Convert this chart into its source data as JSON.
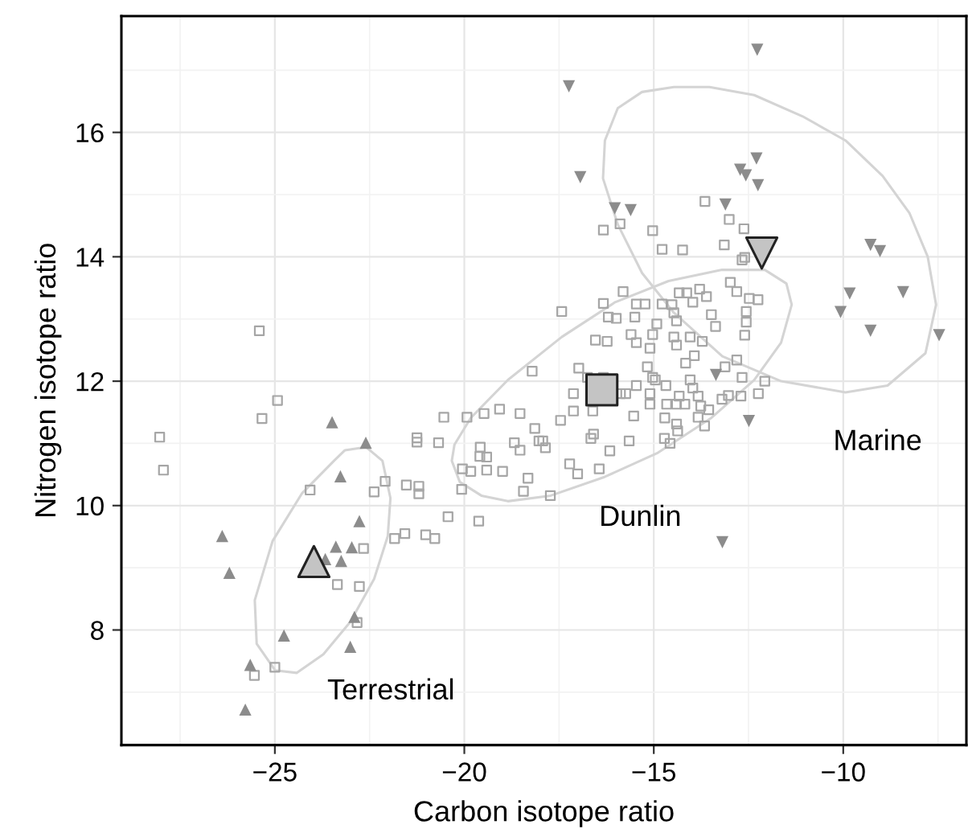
{
  "chart_data": {
    "type": "scatter",
    "xlabel": "Carbon isotope ratio",
    "ylabel": "Nitrogen isotope ratio",
    "xlim": [
      -29.05,
      -6.75
    ],
    "ylim": [
      6.15,
      17.87
    ],
    "xticks": [
      -25,
      -20,
      -15,
      -10
    ],
    "yticks": [
      8,
      10,
      12,
      14,
      16
    ],
    "grid": true,
    "legend": false,
    "series": [
      {
        "color": "#a6a6a6",
        "marker": "square",
        "x": [
          -13.65,
          -13.01,
          -12.62,
          -16.33,
          -15.89,
          -15.03,
          -14.78,
          -14.24,
          -13.14,
          -12.67,
          -12.6,
          -15.81,
          -17.43,
          -16.33,
          -16.2,
          -15.99,
          -15.5,
          -15.46,
          -15.23,
          -14.78,
          -14.52,
          -14.33,
          -14.13,
          -13.97,
          -13.79,
          -13.61,
          -14.47,
          -14.4,
          -13.48,
          -13.37,
          -12.98,
          -12.81,
          -12.48,
          -12.25,
          -12.56,
          -12.56,
          -12.6,
          -14.92,
          -15.03,
          -15.1,
          -14.47,
          -14.4,
          -14.04,
          -13.72,
          -15.6,
          -15.46,
          -16.54,
          -16.23,
          -16.98,
          -16.75,
          -16.33,
          -15.88,
          -15.74,
          -15.46,
          -15.17,
          -15.03,
          -14.96,
          -14.68,
          -15.1,
          -15.1,
          -14.33,
          -14.16,
          -13.93,
          -14.04,
          -13.97,
          -13.83,
          -13.76,
          -13.55,
          -14.18,
          -13.2,
          -13.03,
          -12.7,
          -12.24,
          -12.07,
          -12.67,
          -13.12,
          -12.81,
          -14.66,
          -14.4,
          -15.53,
          -17.12,
          -17.12,
          -16.61,
          -17.46,
          -18.21,
          -19.07,
          -19.48,
          -18.53,
          -19.93,
          -20.54,
          -21.25,
          -21.25,
          -20.68,
          -19.58,
          -19.41,
          -19.59,
          -18.68,
          -18.53,
          -18.14,
          -18.03,
          -17.93,
          -17.86,
          -16.66,
          -16.59,
          -16.16,
          -15.65,
          -14.71,
          -14.4,
          -14.37,
          -14.57,
          -14.72,
          -13.66,
          -13.83,
          -20.05,
          -19.83,
          -19.41,
          -18.99,
          -18.32,
          -17.22,
          -17.01,
          -16.44,
          -20.07,
          -18.44,
          -17.73,
          -21.53,
          -21.2,
          -21.2,
          -20.43,
          -19.62,
          -21.57,
          -21.02,
          -20.78,
          -25.41,
          -24.93,
          -25.34,
          -28.04,
          -27.94,
          -24.07,
          -22.38,
          -22.09,
          -21.84,
          -22.66,
          -23.35,
          -22.77,
          -22.83,
          -25.0,
          -25.54
        ],
        "values": [
          14.89,
          14.6,
          14.45,
          14.43,
          14.53,
          14.42,
          14.12,
          14.11,
          14.19,
          13.95,
          13.99,
          13.44,
          13.12,
          13.25,
          13.03,
          13.01,
          13.03,
          13.24,
          13.24,
          13.24,
          13.23,
          13.42,
          13.42,
          13.27,
          13.48,
          13.36,
          13.1,
          12.97,
          13.07,
          12.88,
          13.59,
          13.44,
          13.33,
          13.31,
          13.12,
          12.95,
          12.74,
          12.92,
          12.75,
          12.53,
          12.71,
          12.58,
          12.71,
          12.64,
          12.75,
          12.62,
          12.66,
          12.64,
          12.21,
          12.06,
          12.06,
          11.8,
          11.8,
          11.93,
          12.23,
          12.06,
          12.02,
          11.93,
          11.8,
          11.63,
          11.76,
          12.29,
          12.41,
          12.02,
          11.89,
          11.76,
          11.6,
          11.54,
          11.63,
          11.71,
          11.77,
          11.76,
          11.8,
          12.0,
          12.06,
          12.23,
          12.34,
          11.63,
          11.63,
          11.44,
          11.8,
          11.52,
          11.52,
          11.37,
          12.16,
          11.55,
          11.48,
          11.48,
          11.42,
          11.42,
          11.09,
          11.02,
          11.01,
          10.94,
          10.78,
          10.79,
          11.01,
          10.89,
          11.24,
          11.04,
          11.04,
          10.93,
          11.08,
          11.15,
          10.88,
          11.04,
          11.41,
          11.31,
          11.2,
          11.0,
          11.08,
          11.28,
          11.42,
          10.59,
          10.55,
          10.57,
          10.55,
          10.44,
          10.67,
          10.51,
          10.59,
          10.26,
          10.23,
          10.16,
          10.33,
          10.31,
          10.19,
          9.82,
          9.75,
          9.55,
          9.53,
          9.47,
          12.81,
          11.69,
          11.4,
          11.1,
          10.57,
          10.25,
          10.22,
          10.39,
          9.47,
          9.31,
          8.73,
          8.7,
          8.12,
          7.4,
          7.27
        ]
      },
      {
        "color": "#8c8c8c",
        "marker": "triangle",
        "x": [
          -23.49,
          -22.6,
          -23.27,
          -22.77,
          -26.39,
          -23.39,
          -22.97,
          -23.67,
          -23.25,
          -26.2,
          -22.9,
          -24.76,
          -23.01,
          -25.65,
          -25.78
        ],
        "values": [
          11.34,
          11.01,
          10.47,
          9.75,
          9.51,
          9.34,
          9.33,
          9.14,
          9.11,
          8.92,
          8.21,
          7.91,
          7.73,
          7.44,
          6.72
        ]
      },
      {
        "color": "#8c8c8c",
        "marker": "triangle_down",
        "x": [
          -17.24,
          -12.27,
          -16.94,
          -12.29,
          -12.72,
          -12.57,
          -12.25,
          -16.03,
          -15.61,
          -13.11,
          -9.28,
          -9.03,
          -9.83,
          -8.42,
          -10.07,
          -9.28,
          -7.47,
          -12.49,
          -13.36,
          -13.19
        ],
        "values": [
          16.74,
          17.33,
          15.28,
          15.58,
          15.4,
          15.31,
          15.15,
          14.78,
          14.75,
          14.84,
          14.19,
          14.09,
          13.41,
          13.43,
          13.11,
          12.81,
          12.74,
          11.36,
          12.1,
          9.41
        ]
      },
      {
        "color": "#c4c4c4",
        "marker": "square",
        "x": [
          -16.37
        ],
        "values": [
          11.86
        ]
      },
      {
        "color": "#c4c4c4",
        "marker": "triangle",
        "x": [
          -23.97
        ],
        "values": [
          9.1
        ]
      },
      {
        "color": "#c4c4c4",
        "marker": "triangle_down",
        "x": [
          -12.15
        ],
        "values": [
          14.06
        ]
      }
    ],
    "annotations": [
      "Terrestrial",
      "Dunlin",
      "Marine"
    ]
  }
}
